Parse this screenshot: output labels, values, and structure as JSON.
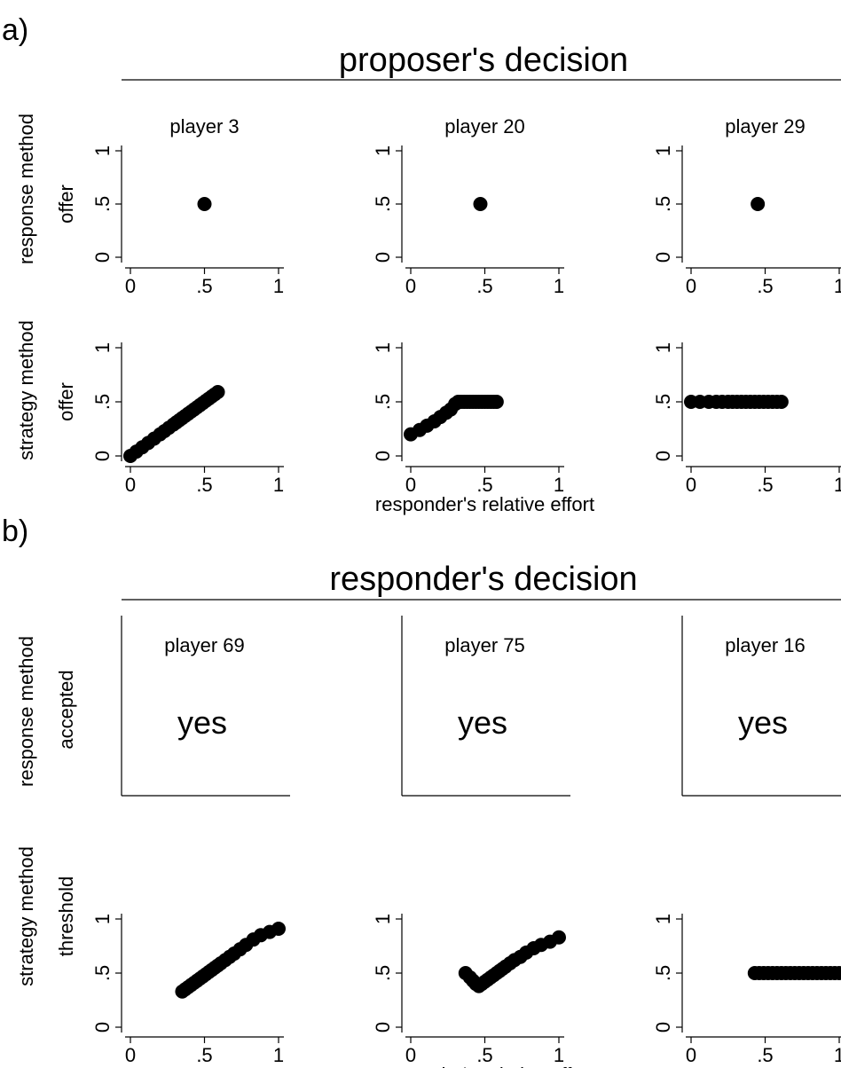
{
  "figure": {
    "panel_a_label": "a)",
    "panel_b_label": "b)",
    "section_a_title": "proposer's decision",
    "section_b_title": "responder's decision",
    "x_axis_label": "responder's relative effort",
    "row_labels": {
      "a_response": [
        "response method",
        "offer"
      ],
      "a_strategy": [
        "strategy method",
        "offer"
      ],
      "b_response": [
        "response method",
        "accepted"
      ],
      "b_strategy": [
        "strategy method",
        "threshold"
      ]
    }
  },
  "chart_data": [
    {
      "section": "proposer's decision",
      "method": "response method",
      "title": "player 3",
      "type": "scatter",
      "ylabel": "offer",
      "xlim": [
        0,
        1
      ],
      "ylim": [
        0,
        1
      ],
      "x_ticks": [
        "0",
        ".5",
        "1"
      ],
      "y_ticks": [
        "0",
        ".5",
        "1"
      ],
      "points": [
        [
          0.5,
          0.5
        ]
      ]
    },
    {
      "section": "proposer's decision",
      "method": "response method",
      "title": "player 20",
      "type": "scatter",
      "ylabel": "offer",
      "xlim": [
        0,
        1
      ],
      "ylim": [
        0,
        1
      ],
      "x_ticks": [
        "0",
        ".5",
        "1"
      ],
      "y_ticks": [
        "0",
        ".5",
        "1"
      ],
      "points": [
        [
          0.47,
          0.5
        ]
      ]
    },
    {
      "section": "proposer's decision",
      "method": "response method",
      "title": "player 29",
      "type": "scatter",
      "ylabel": "offer",
      "xlim": [
        0,
        1
      ],
      "ylim": [
        0,
        1
      ],
      "x_ticks": [
        "0",
        ".5",
        "1"
      ],
      "y_ticks": [
        "0",
        ".5",
        "1"
      ],
      "points": [
        [
          0.45,
          0.5
        ]
      ]
    },
    {
      "section": "proposer's decision",
      "method": "strategy method",
      "title": "",
      "type": "scatter",
      "ylabel": "offer",
      "xlabel": "",
      "xlim": [
        0,
        1
      ],
      "ylim": [
        0,
        1
      ],
      "x_ticks": [
        "0",
        ".5",
        "1"
      ],
      "y_ticks": [
        "0",
        ".5",
        "1"
      ],
      "points": [
        [
          0,
          0
        ],
        [
          0.04,
          0.04
        ],
        [
          0.08,
          0.08
        ],
        [
          0.12,
          0.12
        ],
        [
          0.16,
          0.16
        ],
        [
          0.2,
          0.2
        ],
        [
          0.23,
          0.23
        ],
        [
          0.26,
          0.26
        ],
        [
          0.29,
          0.29
        ],
        [
          0.31,
          0.31
        ],
        [
          0.33,
          0.33
        ],
        [
          0.35,
          0.35
        ],
        [
          0.37,
          0.37
        ],
        [
          0.39,
          0.39
        ],
        [
          0.41,
          0.41
        ],
        [
          0.43,
          0.43
        ],
        [
          0.45,
          0.45
        ],
        [
          0.47,
          0.47
        ],
        [
          0.49,
          0.49
        ],
        [
          0.51,
          0.51
        ],
        [
          0.53,
          0.53
        ],
        [
          0.55,
          0.55
        ],
        [
          0.57,
          0.57
        ],
        [
          0.59,
          0.59
        ]
      ]
    },
    {
      "section": "proposer's decision",
      "method": "strategy method",
      "title": "",
      "type": "scatter",
      "ylabel": "",
      "xlabel": "responder's relative effort",
      "xlim": [
        0,
        1
      ],
      "ylim": [
        0,
        1
      ],
      "x_ticks": [
        "0",
        ".5",
        "1"
      ],
      "y_ticks": [
        "0",
        ".5",
        "1"
      ],
      "points": [
        [
          0,
          0.2
        ],
        [
          0.06,
          0.24
        ],
        [
          0.11,
          0.28
        ],
        [
          0.16,
          0.32
        ],
        [
          0.2,
          0.36
        ],
        [
          0.24,
          0.4
        ],
        [
          0.27,
          0.43
        ],
        [
          0.3,
          0.48
        ],
        [
          0.32,
          0.5
        ],
        [
          0.34,
          0.5
        ],
        [
          0.36,
          0.5
        ],
        [
          0.38,
          0.5
        ],
        [
          0.4,
          0.5
        ],
        [
          0.42,
          0.5
        ],
        [
          0.44,
          0.5
        ],
        [
          0.46,
          0.5
        ],
        [
          0.48,
          0.5
        ],
        [
          0.5,
          0.5
        ],
        [
          0.52,
          0.5
        ],
        [
          0.54,
          0.5
        ],
        [
          0.56,
          0.5
        ],
        [
          0.58,
          0.5
        ]
      ]
    },
    {
      "section": "proposer's decision",
      "method": "strategy method",
      "title": "",
      "type": "scatter",
      "ylabel": "",
      "xlabel": "",
      "xlim": [
        0,
        1
      ],
      "ylim": [
        0,
        1
      ],
      "x_ticks": [
        "0",
        ".5",
        "1"
      ],
      "y_ticks": [
        "0",
        ".5",
        "1"
      ],
      "points": [
        [
          0,
          0.5
        ],
        [
          0.06,
          0.5
        ],
        [
          0.12,
          0.5
        ],
        [
          0.17,
          0.5
        ],
        [
          0.21,
          0.5
        ],
        [
          0.25,
          0.5
        ],
        [
          0.28,
          0.5
        ],
        [
          0.31,
          0.5
        ],
        [
          0.34,
          0.5
        ],
        [
          0.37,
          0.5
        ],
        [
          0.4,
          0.5
        ],
        [
          0.43,
          0.5
        ],
        [
          0.46,
          0.5
        ],
        [
          0.49,
          0.5
        ],
        [
          0.52,
          0.5
        ],
        [
          0.55,
          0.5
        ],
        [
          0.58,
          0.5
        ],
        [
          0.61,
          0.5
        ]
      ]
    },
    {
      "section": "responder's decision",
      "method": "response method",
      "title": "player 69",
      "type": "text",
      "ylabel": "accepted",
      "value": "yes"
    },
    {
      "section": "responder's decision",
      "method": "response method",
      "title": "player 75",
      "type": "text",
      "ylabel": "accepted",
      "value": "yes"
    },
    {
      "section": "responder's decision",
      "method": "response method",
      "title": "player 16",
      "type": "text",
      "ylabel": "accepted",
      "value": "yes"
    },
    {
      "section": "responder's decision",
      "method": "strategy method",
      "title": "",
      "type": "scatter",
      "ylabel": "threshold",
      "xlabel": "",
      "xlim": [
        0,
        1
      ],
      "ylim": [
        0,
        1
      ],
      "x_ticks": [
        "0",
        ".5",
        "1"
      ],
      "y_ticks": [
        "0",
        ".5",
        "1"
      ],
      "points": [
        [
          0.35,
          0.33
        ],
        [
          0.37,
          0.35
        ],
        [
          0.39,
          0.37
        ],
        [
          0.41,
          0.39
        ],
        [
          0.43,
          0.41
        ],
        [
          0.45,
          0.43
        ],
        [
          0.47,
          0.45
        ],
        [
          0.49,
          0.47
        ],
        [
          0.51,
          0.49
        ],
        [
          0.53,
          0.51
        ],
        [
          0.55,
          0.53
        ],
        [
          0.57,
          0.55
        ],
        [
          0.59,
          0.57
        ],
        [
          0.61,
          0.59
        ],
        [
          0.64,
          0.62
        ],
        [
          0.67,
          0.65
        ],
        [
          0.7,
          0.68
        ],
        [
          0.74,
          0.72
        ],
        [
          0.78,
          0.76
        ],
        [
          0.83,
          0.81
        ],
        [
          0.88,
          0.85
        ],
        [
          0.94,
          0.88
        ],
        [
          1,
          0.91
        ]
      ]
    },
    {
      "section": "responder's decision",
      "method": "strategy method",
      "title": "",
      "type": "scatter",
      "ylabel": "",
      "xlabel": "responder's relative effort",
      "xlim": [
        0,
        1
      ],
      "ylim": [
        0,
        1
      ],
      "x_ticks": [
        "0",
        ".5",
        "1"
      ],
      "y_ticks": [
        "0",
        ".5",
        "1"
      ],
      "points": [
        [
          0.37,
          0.5
        ],
        [
          0.4,
          0.46
        ],
        [
          0.42,
          0.43
        ],
        [
          0.44,
          0.4
        ],
        [
          0.46,
          0.38
        ],
        [
          0.48,
          0.4
        ],
        [
          0.5,
          0.42
        ],
        [
          0.52,
          0.44
        ],
        [
          0.54,
          0.46
        ],
        [
          0.56,
          0.48
        ],
        [
          0.58,
          0.5
        ],
        [
          0.6,
          0.52
        ],
        [
          0.62,
          0.54
        ],
        [
          0.64,
          0.56
        ],
        [
          0.67,
          0.59
        ],
        [
          0.7,
          0.62
        ],
        [
          0.74,
          0.65
        ],
        [
          0.78,
          0.69
        ],
        [
          0.83,
          0.73
        ],
        [
          0.88,
          0.76
        ],
        [
          0.94,
          0.79
        ],
        [
          1,
          0.83
        ]
      ]
    },
    {
      "section": "responder's decision",
      "method": "strategy method",
      "title": "",
      "type": "scatter",
      "ylabel": "",
      "xlabel": "",
      "xlim": [
        0,
        1
      ],
      "ylim": [
        0,
        1
      ],
      "x_ticks": [
        "0",
        ".5",
        "1"
      ],
      "y_ticks": [
        "0",
        ".5",
        "1"
      ],
      "points": [
        [
          0.43,
          0.5
        ],
        [
          0.46,
          0.5
        ],
        [
          0.49,
          0.5
        ],
        [
          0.52,
          0.5
        ],
        [
          0.55,
          0.5
        ],
        [
          0.58,
          0.5
        ],
        [
          0.61,
          0.5
        ],
        [
          0.64,
          0.5
        ],
        [
          0.67,
          0.5
        ],
        [
          0.7,
          0.5
        ],
        [
          0.73,
          0.5
        ],
        [
          0.76,
          0.5
        ],
        [
          0.79,
          0.5
        ],
        [
          0.82,
          0.5
        ],
        [
          0.85,
          0.5
        ],
        [
          0.88,
          0.5
        ],
        [
          0.91,
          0.5
        ],
        [
          0.94,
          0.5
        ],
        [
          0.97,
          0.5
        ],
        [
          1.0,
          0.5
        ]
      ]
    }
  ]
}
